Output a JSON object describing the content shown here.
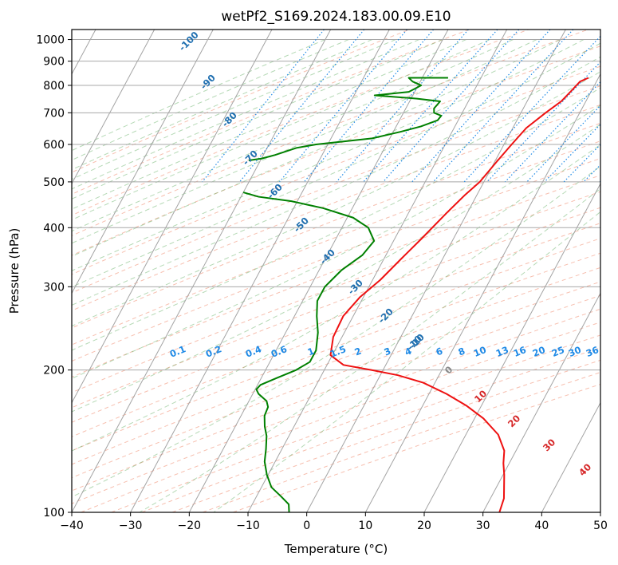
{
  "chart_data": {
    "type": "line",
    "title": "wetPf2_S169.2024.183.00.09.E10",
    "xlabel": "Temperature (°C)",
    "ylabel": "Pressure (hPa)",
    "xlim": [
      -40,
      50
    ],
    "ylim": [
      1050,
      100
    ],
    "y_scale": "log",
    "x_ticks": [
      "−40",
      "−30",
      "−20",
      "−10",
      "0",
      "10",
      "20",
      "30",
      "40",
      "50"
    ],
    "x_tick_values": [
      -40,
      -30,
      -20,
      -10,
      0,
      10,
      20,
      30,
      40,
      50
    ],
    "y_ticks": [
      "100",
      "200",
      "300",
      "400",
      "500",
      "600",
      "700",
      "800",
      "900",
      "1000"
    ],
    "y_tick_values": [
      100,
      200,
      300,
      400,
      500,
      600,
      700,
      800,
      900,
      1000
    ],
    "grid": true,
    "series": [
      {
        "color": "#ee1111",
        "points": [
          [
            8.3,
            830
          ],
          [
            7.2,
            815
          ],
          [
            6.6,
            780
          ],
          [
            5.8,
            740
          ],
          [
            4.2,
            700
          ],
          [
            2.3,
            650
          ],
          [
            1.3,
            600
          ],
          [
            0.3,
            550
          ],
          [
            -0.7,
            500
          ],
          [
            -2.0,
            470
          ],
          [
            -3.5,
            430
          ],
          [
            -5.4,
            380
          ],
          [
            -7.0,
            345
          ],
          [
            -8.7,
            310
          ],
          [
            -10.6,
            285
          ],
          [
            -11.7,
            260
          ],
          [
            -11.5,
            235
          ],
          [
            -10.3,
            215
          ],
          [
            -7.2,
            205
          ],
          [
            -2.0,
            200
          ],
          [
            3.0,
            195
          ],
          [
            8.0,
            188
          ],
          [
            13.0,
            178
          ],
          [
            17.5,
            168
          ],
          [
            21.5,
            158
          ],
          [
            25.5,
            146
          ],
          [
            28.0,
            135
          ],
          [
            29.0,
            127
          ],
          [
            30.2,
            120
          ],
          [
            31.3,
            113
          ],
          [
            32.3,
            107
          ],
          [
            32.8,
            100
          ]
        ]
      },
      {
        "color": "#008000",
        "points": [
          [
            -15.6,
            830
          ],
          [
            -22.3,
            830
          ],
          [
            -21.3,
            815
          ],
          [
            -19.5,
            800
          ],
          [
            -21.0,
            775
          ],
          [
            -26.5,
            762
          ],
          [
            -19.0,
            750
          ],
          [
            -14.8,
            740
          ],
          [
            -15.2,
            715
          ],
          [
            -14.8,
            700
          ],
          [
            -13.3,
            690
          ],
          [
            -13.5,
            675
          ],
          [
            -15.8,
            655
          ],
          [
            -18.8,
            638
          ],
          [
            -23.0,
            618
          ],
          [
            -32.0,
            600
          ],
          [
            -35.0,
            590
          ],
          [
            -38.0,
            570
          ],
          [
            -40.0,
            560
          ],
          [
            -42.0,
            555
          ]
        ]
      },
      {
        "color": "#008000",
        "points": [
          [
            -40.0,
            475
          ],
          [
            -37.0,
            465
          ],
          [
            -31.0,
            455
          ],
          [
            -25.0,
            440
          ],
          [
            -19.0,
            420
          ],
          [
            -15.5,
            400
          ],
          [
            -13.3,
            375
          ],
          [
            -14.0,
            350
          ],
          [
            -16.2,
            325
          ],
          [
            -17.5,
            300
          ],
          [
            -17.5,
            280
          ],
          [
            -16.2,
            260
          ],
          [
            -14.5,
            240
          ],
          [
            -13.2,
            220
          ],
          [
            -13.2,
            208
          ],
          [
            -14.8,
            200
          ],
          [
            -17.5,
            192
          ],
          [
            -19.5,
            186
          ],
          [
            -19.8,
            182
          ],
          [
            -19.0,
            178
          ],
          [
            -17.0,
            172
          ],
          [
            -16.2,
            167
          ],
          [
            -16.0,
            160
          ],
          [
            -15.0,
            152
          ],
          [
            -13.8,
            145
          ],
          [
            -12.7,
            136
          ],
          [
            -11.8,
            128
          ],
          [
            -10.2,
            120
          ],
          [
            -8.3,
            113
          ],
          [
            -5.8,
            108
          ],
          [
            -3.8,
            104
          ],
          [
            -3.0,
            100
          ]
        ]
      }
    ],
    "mixing_ratio_labels": [
      "0.1",
      "0.2",
      "0.4",
      "0.6",
      "1",
      "1.5",
      "2",
      "3",
      "4",
      "6",
      "8",
      "10",
      "13",
      "16",
      "20",
      "25",
      "30",
      "36"
    ],
    "mixing_ratio_values": [
      0.1,
      0.2,
      0.4,
      0.6,
      1,
      1.5,
      2,
      3,
      4,
      6,
      8,
      10,
      13,
      16,
      20,
      25,
      30,
      36
    ],
    "dry_adiabat_labels": [
      "-100",
      "-90",
      "-80",
      "-70",
      "-60",
      "-50",
      "-40",
      "-30",
      "-20",
      "-10"
    ],
    "moist_adiabat_labels": [
      "0",
      "10",
      "20",
      "30",
      "40"
    ]
  }
}
